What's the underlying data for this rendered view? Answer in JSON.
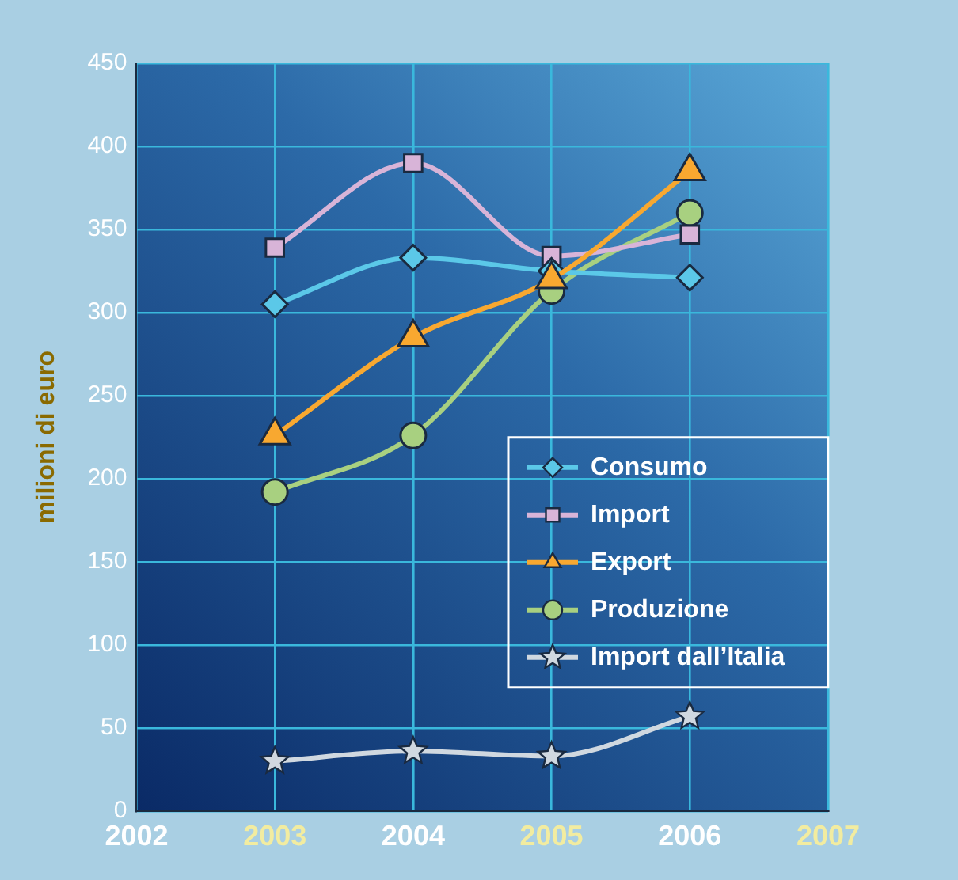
{
  "chart_data": {
    "type": "line",
    "ylabel": "milioni di euro",
    "x": [
      2003,
      2004,
      2005,
      2006
    ],
    "series": [
      {
        "name": "Consumo",
        "color": "#5bc8e8",
        "marker": "diamond",
        "values": [
          305,
          333,
          325,
          321
        ]
      },
      {
        "name": "Import",
        "color": "#d8b4d8",
        "marker": "square",
        "values": [
          339,
          390,
          334,
          347
        ]
      },
      {
        "name": "Export",
        "color": "#f8a830",
        "marker": "triangle",
        "values": [
          226,
          285,
          320,
          385
        ]
      },
      {
        "name": "Produzione",
        "color": "#a8d080",
        "marker": "circle",
        "values": [
          192,
          226,
          313,
          360
        ]
      },
      {
        "name": "Import dall’Italia",
        "color": "#d0d8e0",
        "marker": "star",
        "values": [
          30,
          36,
          33,
          57
        ]
      }
    ],
    "xlim": [
      2002,
      2007
    ],
    "xticks": [
      2002,
      2003,
      2004,
      2005,
      2006,
      2007
    ],
    "ylim": [
      0,
      450
    ],
    "yticks": [
      0,
      50,
      100,
      150,
      200,
      250,
      300,
      350,
      400,
      450
    ],
    "grid": true,
    "legend": "bottom right"
  }
}
